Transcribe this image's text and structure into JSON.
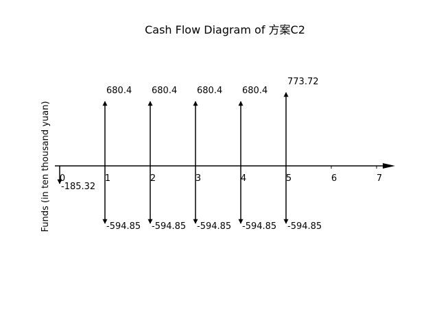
{
  "chart_data": {
    "type": "cash-flow-diagram",
    "title": "Cash Flow Diagram of 方案C2",
    "ylabel": "Funds (in ten thousand yuan)",
    "x_ticks": [
      0,
      1,
      2,
      3,
      4,
      5,
      6,
      7
    ],
    "inflows": [
      {
        "period": 1,
        "value": 680.4,
        "label": "680.4"
      },
      {
        "period": 2,
        "value": 680.4,
        "label": "680.4"
      },
      {
        "period": 3,
        "value": 680.4,
        "label": "680.4"
      },
      {
        "period": 4,
        "value": 680.4,
        "label": "680.4"
      },
      {
        "period": 5,
        "value": 773.72,
        "label": "773.72"
      }
    ],
    "outflows": [
      {
        "period": 0,
        "value": -185.32,
        "label": "-185.32"
      },
      {
        "period": 1,
        "value": -594.85,
        "label": "-594.85"
      },
      {
        "period": 2,
        "value": -594.85,
        "label": "-594.85"
      },
      {
        "period": 3,
        "value": -594.85,
        "label": "-594.85"
      },
      {
        "period": 4,
        "value": -594.85,
        "label": "-594.85"
      },
      {
        "period": 5,
        "value": -594.85,
        "label": "-594.85"
      }
    ],
    "grid": false,
    "legend": "none"
  }
}
